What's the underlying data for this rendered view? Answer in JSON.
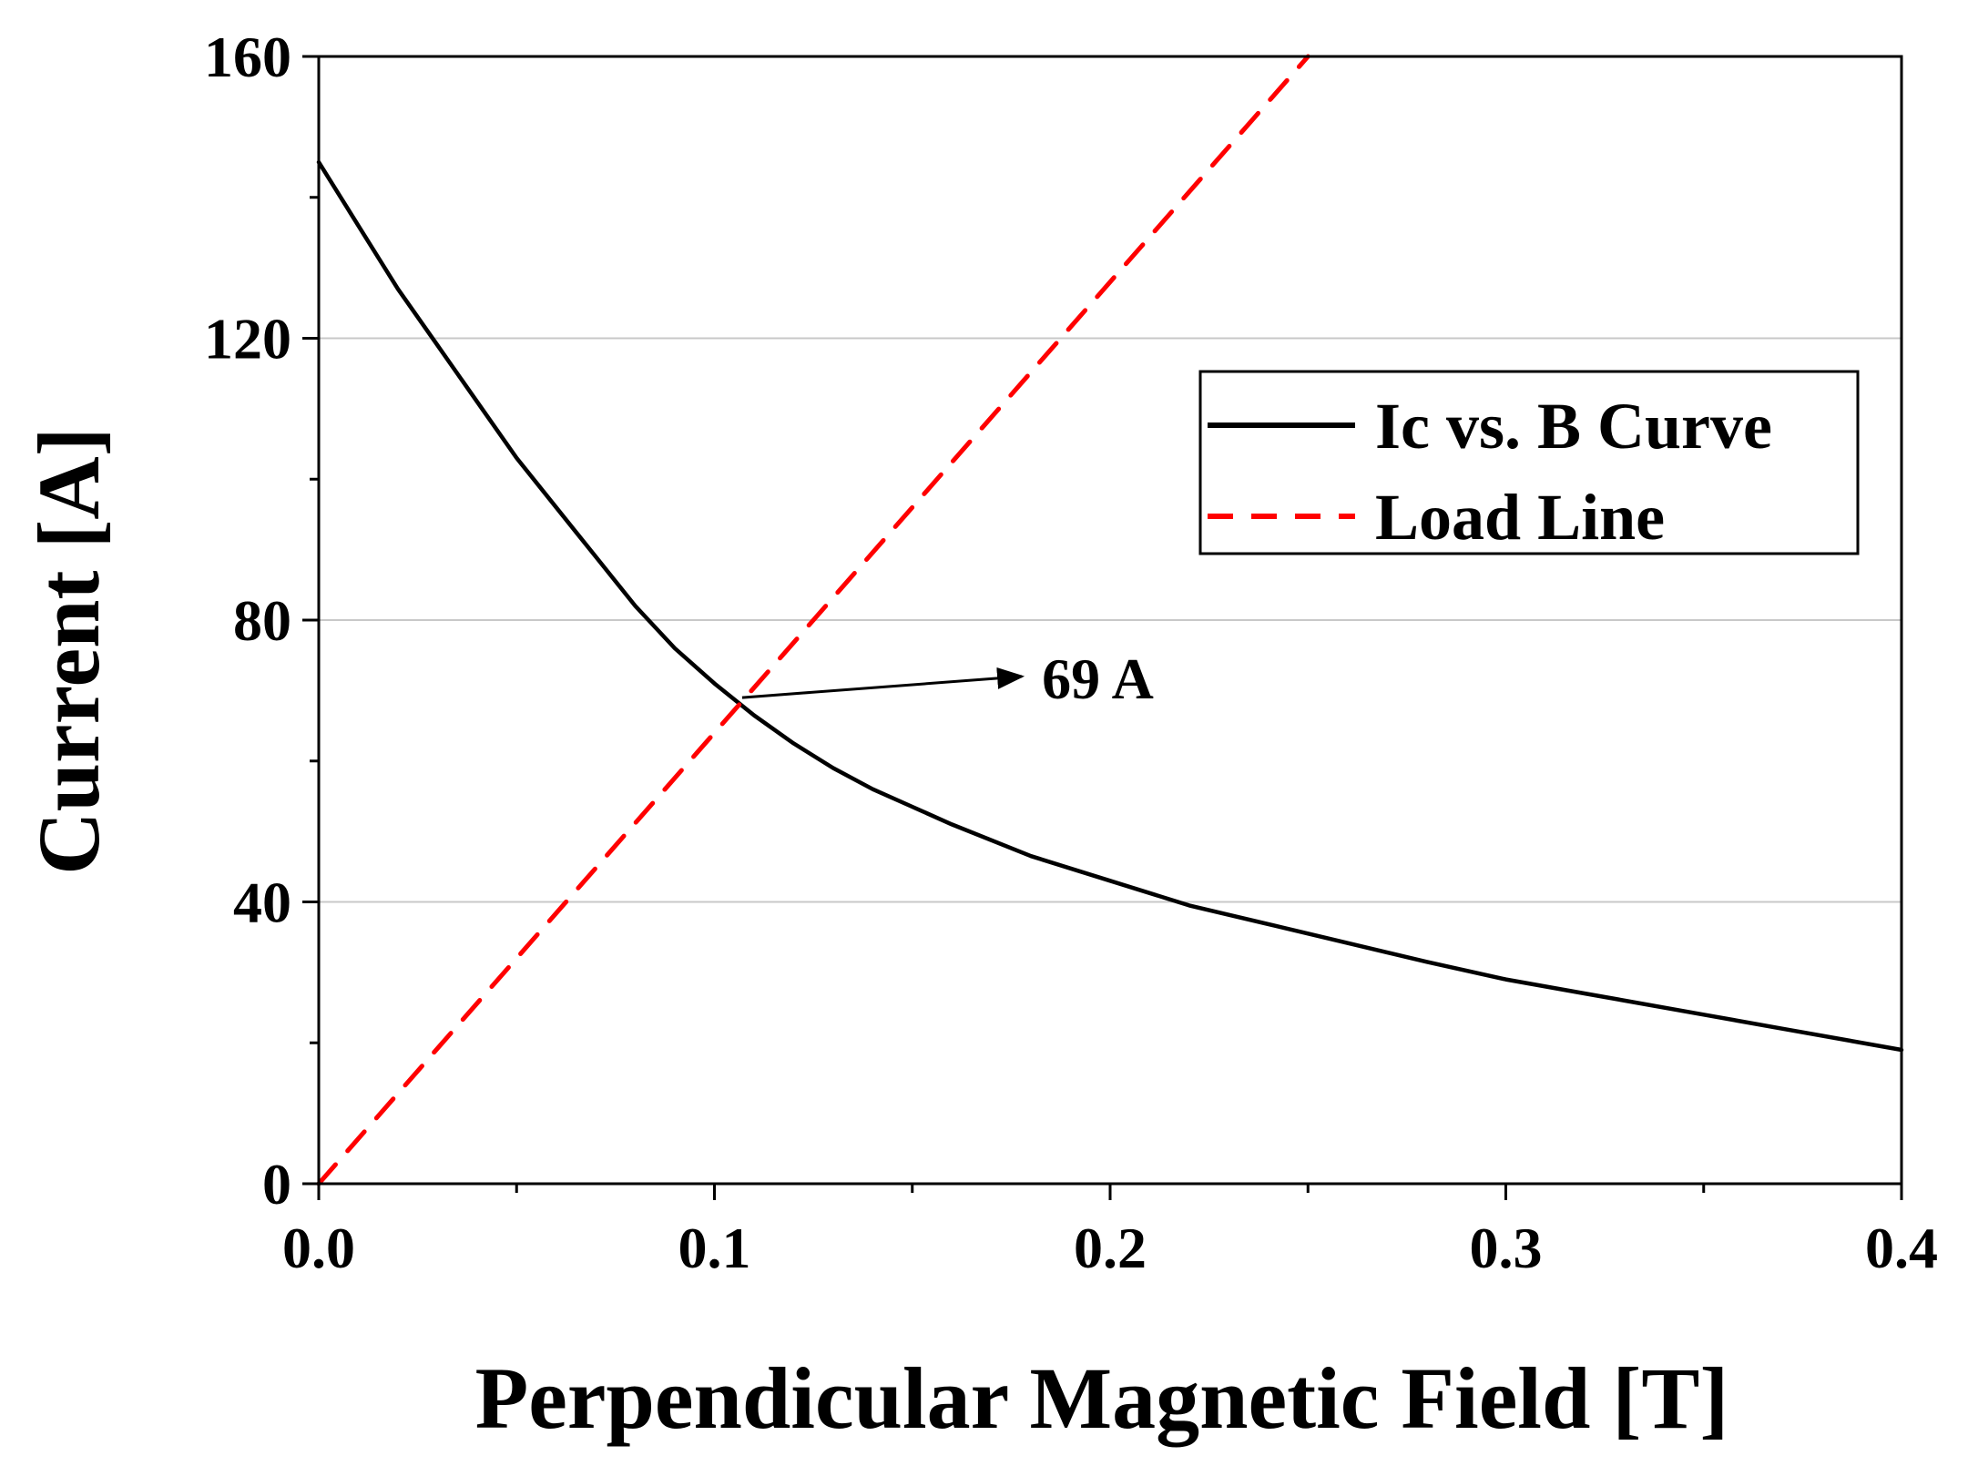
{
  "chart_data": {
    "type": "line",
    "title": "",
    "xlabel": "Perpendicular Magnetic Field [T]",
    "ylabel": "Current [A]",
    "xlim": [
      0.0,
      0.4
    ],
    "ylim": [
      0,
      160
    ],
    "x_ticks": [
      "0.0",
      "0.1",
      "0.2",
      "0.3",
      "0.4"
    ],
    "y_ticks": [
      "0",
      "40",
      "80",
      "120",
      "160"
    ],
    "grid": "horizontal",
    "legend_position": "top-right",
    "series": [
      {
        "name": "Ic vs. B Curve",
        "color": "#000000",
        "style": "solid",
        "x": [
          0.0,
          0.01,
          0.02,
          0.03,
          0.04,
          0.05,
          0.06,
          0.07,
          0.08,
          0.09,
          0.1,
          0.11,
          0.12,
          0.13,
          0.14,
          0.15,
          0.16,
          0.18,
          0.2,
          0.22,
          0.25,
          0.28,
          0.3,
          0.32,
          0.35,
          0.37,
          0.4
        ],
        "y": [
          145,
          136,
          127,
          119,
          111,
          103,
          96,
          89,
          82,
          76,
          71,
          66.5,
          62.5,
          59,
          56,
          53.5,
          51,
          46.5,
          43,
          39.5,
          35.5,
          31.5,
          29,
          27,
          24,
          22,
          19
        ]
      },
      {
        "name": "Load Line",
        "color": "#ff0000",
        "style": "dashed",
        "x": [
          0.0,
          0.25
        ],
        "y": [
          0,
          160
        ]
      }
    ],
    "annotations": [
      {
        "text": "69 A",
        "point": [
          0.107,
          69
        ],
        "text_at": [
          0.18,
          72
        ]
      }
    ]
  }
}
